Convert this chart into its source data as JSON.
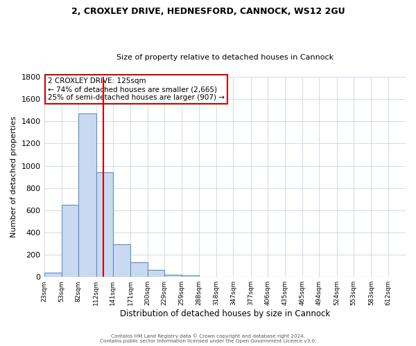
{
  "title1": "2, CROXLEY DRIVE, HEDNESFORD, CANNOCK, WS12 2GU",
  "title2": "Size of property relative to detached houses in Cannock",
  "xlabel": "Distribution of detached houses by size in Cannock",
  "ylabel": "Number of detached properties",
  "bin_labels": [
    "23sqm",
    "53sqm",
    "82sqm",
    "112sqm",
    "141sqm",
    "171sqm",
    "200sqm",
    "229sqm",
    "259sqm",
    "288sqm",
    "318sqm",
    "347sqm",
    "377sqm",
    "406sqm",
    "435sqm",
    "465sqm",
    "494sqm",
    "524sqm",
    "553sqm",
    "583sqm",
    "612sqm"
  ],
  "bin_edges": [
    23,
    53,
    82,
    112,
    141,
    171,
    200,
    229,
    259,
    288,
    318,
    347,
    377,
    406,
    435,
    465,
    494,
    524,
    553,
    583,
    612
  ],
  "bar_heights": [
    40,
    650,
    1470,
    940,
    295,
    130,
    65,
    22,
    12,
    0,
    0,
    0,
    0,
    0,
    0,
    0,
    0,
    0,
    0,
    0
  ],
  "bar_color": "#c9d9f0",
  "bar_edgecolor": "#5b8dc8",
  "vline_x": 125,
  "vline_color": "#cc0000",
  "annot_line1": "2 CROXLEY DRIVE: 125sqm",
  "annot_line2": "← 74% of detached houses are smaller (2,665)",
  "annot_line3": "25% of semi-detached houses are larger (907) →",
  "annotation_box_edgecolor": "#cc0000",
  "ylim": [
    0,
    1800
  ],
  "yticks": [
    0,
    200,
    400,
    600,
    800,
    1000,
    1200,
    1400,
    1600,
    1800
  ],
  "footer1": "Contains HM Land Registry data © Crown copyright and database right 2024.",
  "footer2": "Contains public sector information licensed under the Open Government Licence v3.0.",
  "bg_color": "#ffffff",
  "grid_color": "#c8d4e8"
}
